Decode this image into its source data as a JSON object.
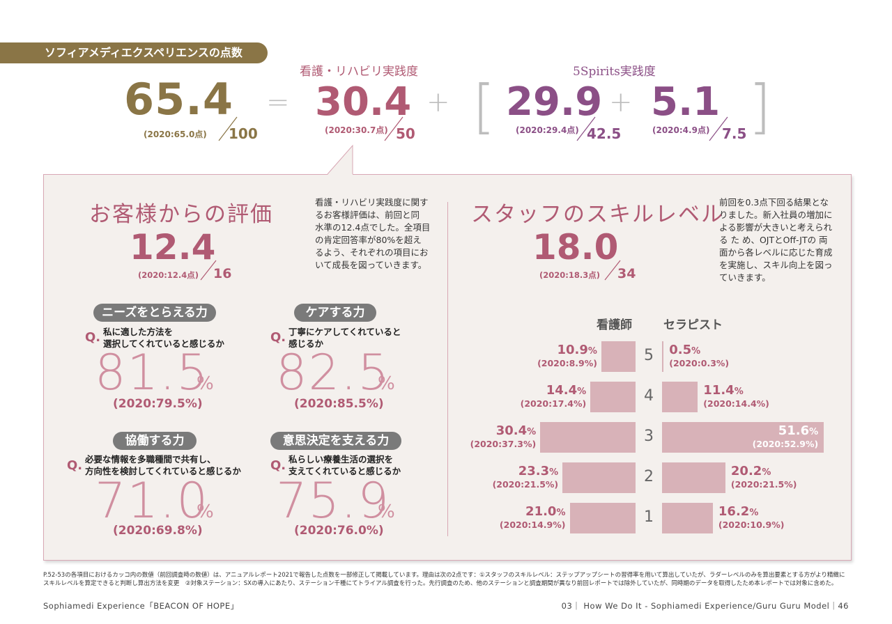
{
  "header": {
    "tag": "ソフィアメディエクスペリエンスの点数"
  },
  "totals": {
    "total": {
      "value": "65.4",
      "prev": "(2020:65.0点)",
      "den": "100"
    },
    "eq": "=",
    "plus1": "+",
    "plus2": "+",
    "bracket_open": "[",
    "bracket_close": "]",
    "nursing": {
      "label": "看護・リハビリ実践度",
      "value": "30.4",
      "prev": "(2020:30.7点)",
      "den": "50"
    },
    "spirits_label": "5Spirits実践度",
    "spirits_a": {
      "value": "29.9",
      "prev": "(2020:29.4点)",
      "den": "42.5"
    },
    "spirits_b": {
      "value": "5.1",
      "prev": "(2020:4.9点)",
      "den": "7.5"
    }
  },
  "customer": {
    "title": "お客様からの評価",
    "score": "12.4",
    "prev": "(2020:12.4点)",
    "den": "16",
    "desc": [
      "看護・リハビリ実践度に関す",
      "るお客様評価は、前回と同",
      "水準の12.4点でした。全項目",
      "の肯定回答率が80%を超え",
      "るよう、それぞれの項目にお",
      "いて成長を図っていきます。"
    ],
    "items": [
      {
        "pill": "ニーズをとらえる力",
        "q": "Q.",
        "text1": "私に適した方法を",
        "text2": "選択してくれていると感じるか",
        "pct": "81.5",
        "sign": "%",
        "prev": "(2020:79.5%)"
      },
      {
        "pill": "ケアする力",
        "q": "Q.",
        "text1": "丁寧にケアしてくれていると",
        "text2": "感じるか",
        "pct": "82.5",
        "sign": "%",
        "prev": "(2020:85.5%)"
      },
      {
        "pill": "協働する力",
        "q": "Q.",
        "text1": "必要な情報を多職種間で共有し、",
        "text2": "方向性を検討してくれていると感じるか",
        "pct": "71.0",
        "sign": "%",
        "prev": "(2020:69.8%)"
      },
      {
        "pill": "意思決定を支える力",
        "q": "Q.",
        "text1": "私らしい療養生活の選択を",
        "text2": "支えてくれていると感じるか",
        "pct": "75.9",
        "sign": "%",
        "prev": "(2020:76.0%)"
      }
    ]
  },
  "staff": {
    "title": "スタッフのスキルレベル",
    "score": "18.0",
    "prev": "(2020:18.3点)",
    "den": "34",
    "desc": [
      "前回を0.3点下回る結果とな",
      "りました。新入社員の増加に",
      "よる影響が大きいと考えられ",
      "る た め、OJTとOff-JTの 両",
      "面から各レベルに応じた育成",
      "を実施し、スキル向上を図っ",
      "ていきます。"
    ],
    "col_nurse": "看護師",
    "col_therapist": "セラピスト"
  },
  "chart_data": {
    "type": "bar",
    "categories": [
      "5",
      "4",
      "3",
      "2",
      "1"
    ],
    "series": [
      {
        "name": "看護師",
        "values": [
          10.9,
          14.4,
          30.4,
          23.3,
          21.0
        ],
        "labels": [
          "10.9",
          "14.4",
          "30.4",
          "23.3",
          "21.0"
        ],
        "prev": [
          "(2020:8.9%)",
          "(2020:17.4%)",
          "(2020:37.3%)",
          "(2020:21.5%)",
          "(2020:14.9%)"
        ]
      },
      {
        "name": "セラピスト",
        "values": [
          0.5,
          11.4,
          51.6,
          20.2,
          16.2
        ],
        "labels": [
          "0.5",
          "11.4",
          "51.6",
          "20.2",
          "16.2"
        ],
        "prev": [
          "(2020:0.3%)",
          "(2020:14.4%)",
          "(2020:52.9%)",
          "(2020:21.5%)",
          "(2020:10.9%)"
        ]
      }
    ],
    "unit": "%",
    "orientation": "horizontal-mirrored"
  },
  "footnote": {
    "line1": "P.52-53の各項目におけるカッコ内の数値（前回調査時の数値）は、アニュアルレポート2021で報告した点数を一部修正して掲載しています。理由は次の2点です：①スタッフのスキルレベル：ステップアップシートの習得率を用いて算出していたが、ラダーレベルのみを算出要素とする方がより精緻に",
    "line2": "スキルレベルを算定できると判断し算出方法を変更　②対象ステーション：SXの導入にあたり、ステーション千種にてトライアル調査を行った。先行調査のため、他のステーションと調査期間が異なり前回レポートでは除外していたが、同時期のデータを取得したため本レポートでは対象に含めた。"
  },
  "footer": {
    "left": "Sophiamedi Experience「BEACON OF HOPE」",
    "right": "03｜ How We Do It - Sophiamedi Experience/Guru Guru Model｜46"
  }
}
